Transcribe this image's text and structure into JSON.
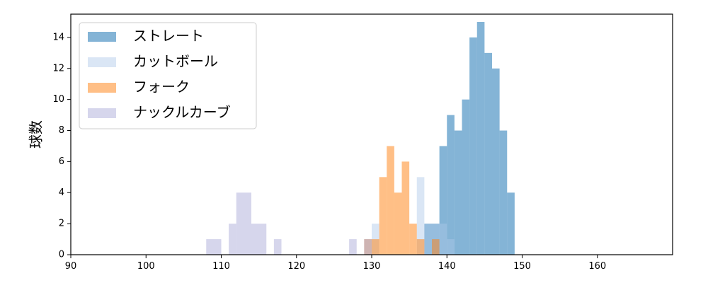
{
  "chart_data": {
    "type": "histogram",
    "title": "",
    "xlabel": "",
    "ylabel": "球数",
    "xlim": [
      90,
      170
    ],
    "ylim": [
      0,
      15.5
    ],
    "xticks": [
      90,
      100,
      110,
      120,
      130,
      140,
      150,
      160
    ],
    "yticks": [
      0,
      2,
      4,
      6,
      8,
      10,
      12,
      14
    ],
    "grid": false,
    "legend_position": "top-left",
    "series": [
      {
        "name": "ストレート",
        "color": "#1f77b4",
        "alpha": 0.55,
        "bins": [
          {
            "x0": 137.0,
            "x1": 138.0,
            "count": 2
          },
          {
            "x0": 138.0,
            "x1": 139.0,
            "count": 2
          },
          {
            "x0": 139.0,
            "x1": 140.0,
            "count": 7
          },
          {
            "x0": 140.0,
            "x1": 141.0,
            "count": 9
          },
          {
            "x0": 141.0,
            "x1": 142.0,
            "count": 8
          },
          {
            "x0": 142.0,
            "x1": 143.0,
            "count": 10
          },
          {
            "x0": 143.0,
            "x1": 144.0,
            "count": 14
          },
          {
            "x0": 144.0,
            "x1": 145.0,
            "count": 15
          },
          {
            "x0": 145.0,
            "x1": 146.0,
            "count": 13
          },
          {
            "x0": 146.0,
            "x1": 147.0,
            "count": 12
          },
          {
            "x0": 147.0,
            "x1": 148.0,
            "count": 8
          },
          {
            "x0": 148.0,
            "x1": 149.0,
            "count": 4
          }
        ]
      },
      {
        "name": "カットボール",
        "color": "#aec7e8",
        "alpha": 0.45,
        "bins": [
          {
            "x0": 129.0,
            "x1": 130.0,
            "count": 1
          },
          {
            "x0": 130.0,
            "x1": 131.0,
            "count": 2
          },
          {
            "x0": 136.0,
            "x1": 137.0,
            "count": 5
          },
          {
            "x0": 137.0,
            "x1": 138.0,
            "count": 2
          },
          {
            "x0": 138.0,
            "x1": 139.0,
            "count": 2
          },
          {
            "x0": 139.0,
            "x1": 140.0,
            "count": 2
          },
          {
            "x0": 140.0,
            "x1": 141.0,
            "count": 1
          }
        ]
      },
      {
        "name": "フォーク",
        "color": "#ff7f0e",
        "alpha": 0.5,
        "bins": [
          {
            "x0": 129.0,
            "x1": 130.0,
            "count": 1
          },
          {
            "x0": 130.0,
            "x1": 131.0,
            "count": 1
          },
          {
            "x0": 131.0,
            "x1": 132.0,
            "count": 5
          },
          {
            "x0": 132.0,
            "x1": 133.0,
            "count": 7
          },
          {
            "x0": 133.0,
            "x1": 134.0,
            "count": 4
          },
          {
            "x0": 134.0,
            "x1": 135.0,
            "count": 6
          },
          {
            "x0": 135.0,
            "x1": 136.0,
            "count": 2
          },
          {
            "x0": 136.0,
            "x1": 137.0,
            "count": 1
          },
          {
            "x0": 138.0,
            "x1": 139.0,
            "count": 1
          }
        ]
      },
      {
        "name": "ナックルカーブ",
        "color": "#b5b5dc",
        "alpha": 0.55,
        "bins": [
          {
            "x0": 108.0,
            "x1": 110.0,
            "count": 1
          },
          {
            "x0": 111.0,
            "x1": 112.0,
            "count": 2
          },
          {
            "x0": 112.0,
            "x1": 114.0,
            "count": 4
          },
          {
            "x0": 114.0,
            "x1": 116.0,
            "count": 2
          },
          {
            "x0": 117.0,
            "x1": 118.0,
            "count": 1
          },
          {
            "x0": 127.0,
            "x1": 128.0,
            "count": 1
          },
          {
            "x0": 129.0,
            "x1": 130.0,
            "count": 1
          }
        ]
      }
    ]
  }
}
